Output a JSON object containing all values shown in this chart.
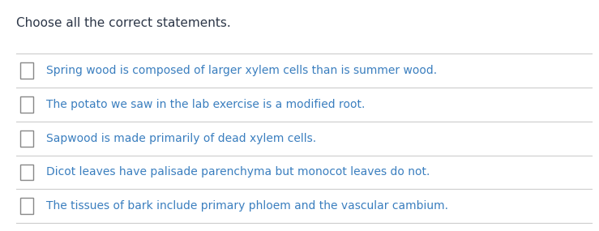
{
  "title": "Choose all the correct statements.",
  "title_color": "#2d3748",
  "title_fontsize": 11,
  "bg_color": "#ffffff",
  "line_color": "#cccccc",
  "checkbox_color": "#888888",
  "text_color": "#3a7ebf",
  "options": [
    "Spring wood is composed of larger xylem cells than is summer wood.",
    "The potato we saw in the lab exercise is a modified root.",
    "Sapwood is made primarily of dead xylem cells.",
    "Dicot leaves have palisade parenchyma but monocot leaves do not.",
    "The tissues of bark include primary phloem and the vascular cambium."
  ],
  "option_fontsize": 10,
  "figsize": [
    7.39,
    2.85
  ],
  "dpi": 100
}
